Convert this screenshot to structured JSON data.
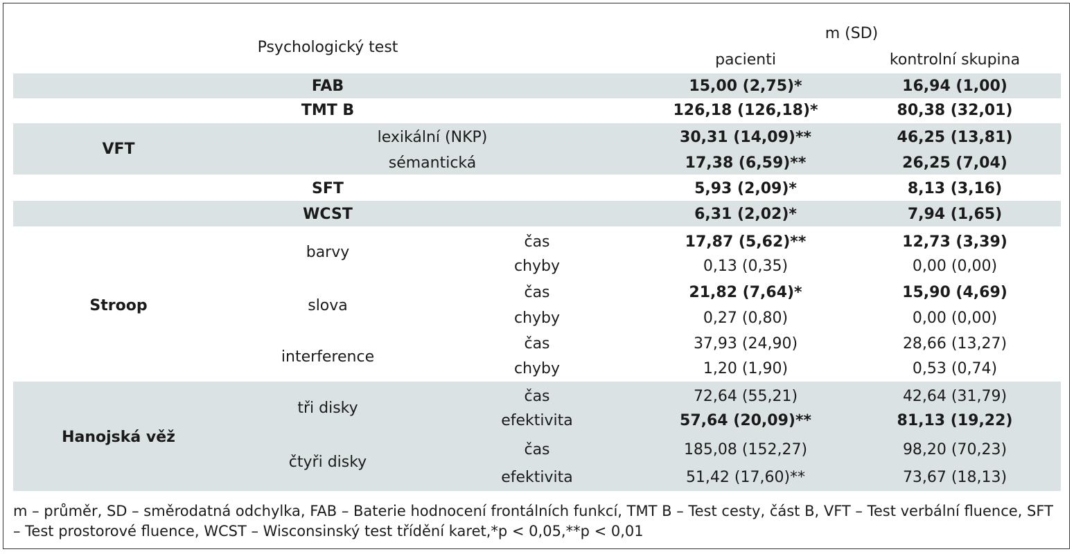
{
  "header": {
    "test_column": "Psychologický test",
    "stat_label": "m (SD)",
    "patients": "pacienti",
    "controls": "kontrolní skupina"
  },
  "rows": {
    "fab": {
      "label": "FAB",
      "patients": "15,00 (2,75)*",
      "controls": "16,94 (1,00)"
    },
    "tmtb": {
      "label": "TMT B",
      "patients": "126,18 (126,18)*",
      "controls": "80,38 (32,01)"
    },
    "vft": {
      "label": "VFT",
      "lexical": {
        "label": "lexikální (NKP)",
        "patients": "30,31 (14,09)**",
        "controls": "46,25 (13,81)"
      },
      "semantic": {
        "label": "sémantická",
        "patients": "17,38 (6,59)**",
        "controls": "26,25 (7,04)"
      }
    },
    "sft": {
      "label": "SFT",
      "patients": "5,93 (2,09)*",
      "controls": "8,13 (3,16)"
    },
    "wcst": {
      "label": "WCST",
      "patients": "6,31 (2,02)*",
      "controls": "7,94 (1,65)"
    },
    "stroop": {
      "label": "Stroop",
      "colors": {
        "label": "barvy",
        "time": {
          "label": "čas",
          "patients": "17,87 (5,62)**",
          "controls": "12,73 (3,39)"
        },
        "errors": {
          "label": "chyby",
          "patients": "0,13 (0,35)",
          "controls": "0,00 (0,00)"
        }
      },
      "words": {
        "label": "slova",
        "time": {
          "label": "čas",
          "patients": "21,82 (7,64)*",
          "controls": "15,90 (4,69)"
        },
        "errors": {
          "label": "chyby",
          "patients": "0,27 (0,80)",
          "controls": "0,00 (0,00)"
        }
      },
      "interference": {
        "label": "interference",
        "time": {
          "label": "čas",
          "patients": "37,93 (24,90)",
          "controls": "28,66 (13,27)"
        },
        "errors": {
          "label": "chyby",
          "patients": "1,20 (1,90)",
          "controls": "0,53 (0,74)"
        }
      }
    },
    "hanoi": {
      "label": "Hanojská věž",
      "three": {
        "label": "tři disky",
        "time": {
          "label": "čas",
          "patients": "72,64 (55,21)",
          "controls": "42,64 (31,79)"
        },
        "efficiency": {
          "label": "efektivita",
          "patients": "57,64 (20,09)**",
          "controls": "81,13 (19,22)"
        }
      },
      "four": {
        "label": "čtyři disky",
        "time": {
          "label": "čas",
          "patients": "185,08 (152,27)",
          "controls": "98,20 (70,23)"
        },
        "efficiency": {
          "label": "efektivita",
          "patients": "51,42 (17,60)**",
          "controls": "73,67 (18,13)"
        }
      }
    }
  },
  "footnote": "m – průměr, SD – směrodatná odchylka, FAB – Baterie hodnocení frontálních funkcí, TMT B – Test cesty, část B, VFT – Test verbální fluence, SFT – Test prostorové fluence, WCST – Wisconsinský test třídění karet,*p < 0,05,**p < 0,01",
  "colors": {
    "band": "#dbe2e3",
    "border": "#333333",
    "text": "#1a1a1a"
  }
}
